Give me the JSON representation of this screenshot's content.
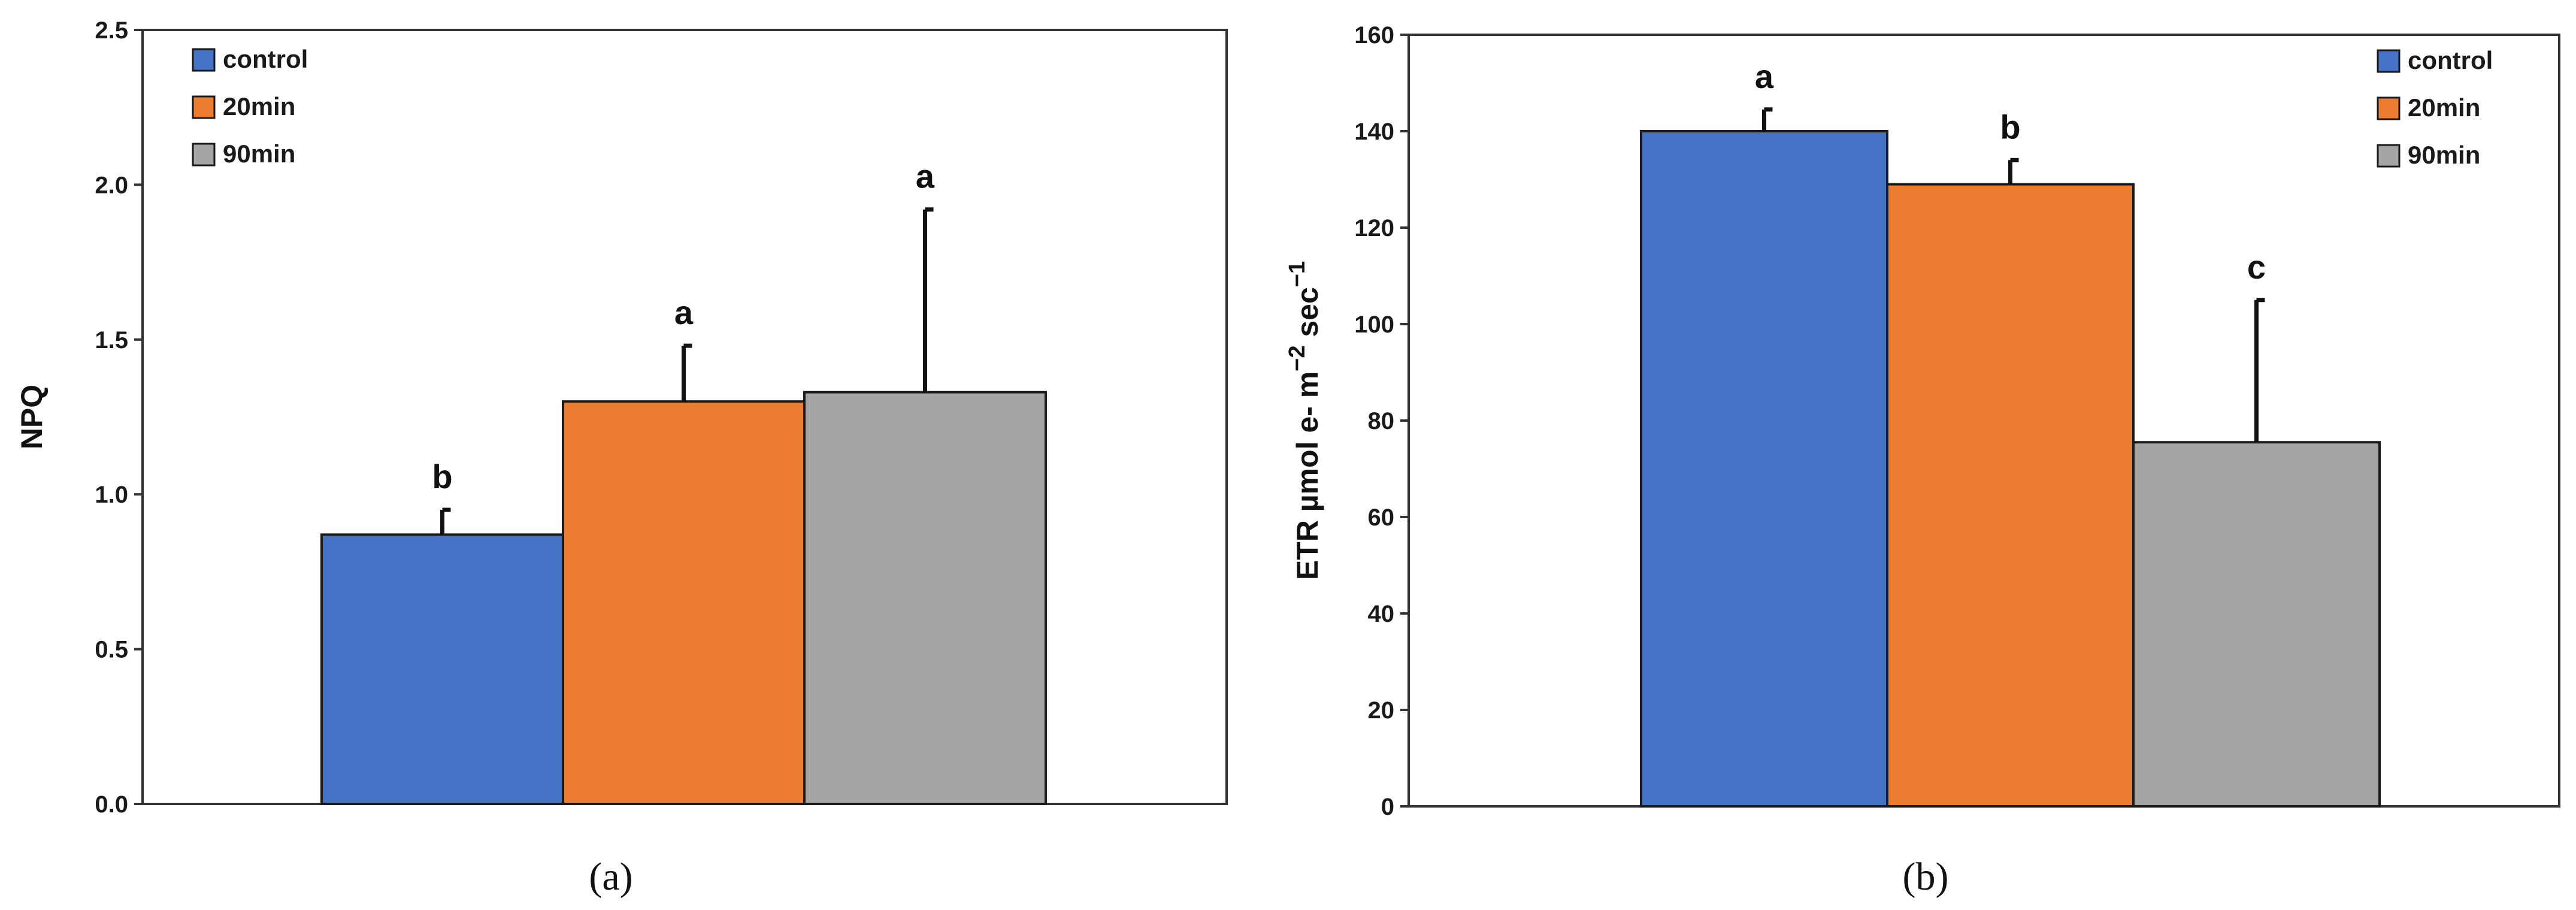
{
  "chart_data": [
    {
      "panel": "(a)",
      "type": "bar",
      "xlabel": "",
      "ylabel": "NPQ",
      "ylim": [
        0,
        2.5
      ],
      "yticks": [
        "0.0",
        "0.5",
        "1.0",
        "1.5",
        "2.0",
        "2.5"
      ],
      "legend_position": "top-left",
      "series": [
        {
          "name": "control",
          "value": 0.87,
          "error": 0.08,
          "label": "b",
          "color": "#4472C4"
        },
        {
          "name": "20min",
          "value": 1.3,
          "error": 0.18,
          "label": "a",
          "color": "#ED7D31"
        },
        {
          "name": "90min",
          "value": 1.33,
          "error": 0.59,
          "label": "a",
          "color": "#A5A5A5"
        }
      ]
    },
    {
      "panel": "(b)",
      "type": "bar",
      "xlabel": "",
      "ylabel": "ETR  µmol e- m",
      "ylabel_sup1": "−2",
      "ylabel_mid": " sec",
      "ylabel_sup2": "−1",
      "ylim": [
        0,
        160
      ],
      "yticks": [
        "0",
        "20",
        "40",
        "60",
        "80",
        "100",
        "120",
        "140",
        "160"
      ],
      "legend_position": "top-right",
      "series": [
        {
          "name": "control",
          "value": 140,
          "error": 4.5,
          "label": "a",
          "color": "#4472C4"
        },
        {
          "name": "20min",
          "value": 129,
          "error": 5.0,
          "label": "b",
          "color": "#ED7D31"
        },
        {
          "name": "90min",
          "value": 75.5,
          "error": 29.5,
          "label": "c",
          "color": "#A5A5A5"
        }
      ]
    }
  ]
}
